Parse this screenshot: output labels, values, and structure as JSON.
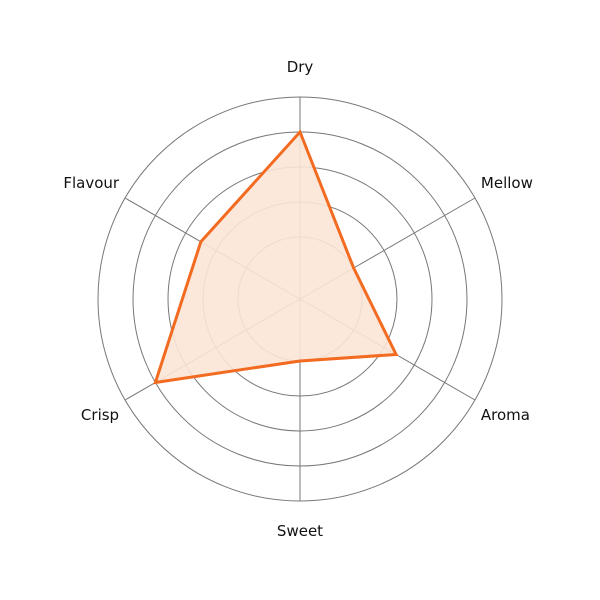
{
  "chart_data": {
    "type": "radar",
    "title": "",
    "categories": [
      "Dry",
      "Mellow",
      "Aroma",
      "Sweet",
      "Crisp",
      "Flavour"
    ],
    "series": [
      {
        "values": [
          4,
          1,
          2.4,
          1,
          4,
          2.5
        ],
        "color": "#f26b21",
        "fill": "#fbe5d6"
      }
    ],
    "radial_ticks": [
      1,
      2,
      3,
      4,
      5
    ],
    "radial_range": [
      -0.77,
      5
    ],
    "grid": true,
    "grid_color": "#777777"
  }
}
